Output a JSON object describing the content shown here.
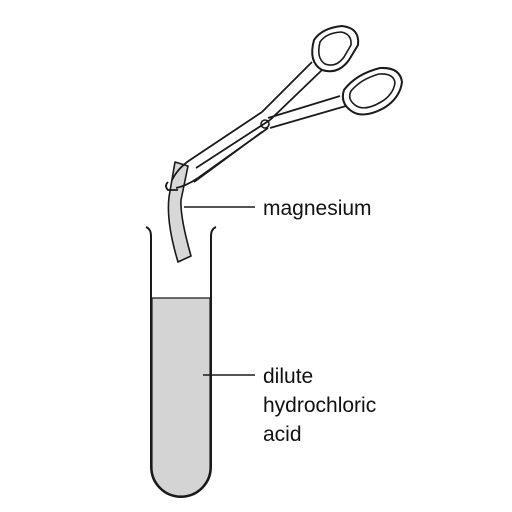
{
  "labels": {
    "magnesium": "magnesium",
    "acid_lines": [
      "dilute",
      "hydrochloric",
      "acid"
    ]
  },
  "colors": {
    "outline": "#1a1a1a",
    "acid_fill": "#d4d4d4",
    "background": "#ffffff"
  }
}
